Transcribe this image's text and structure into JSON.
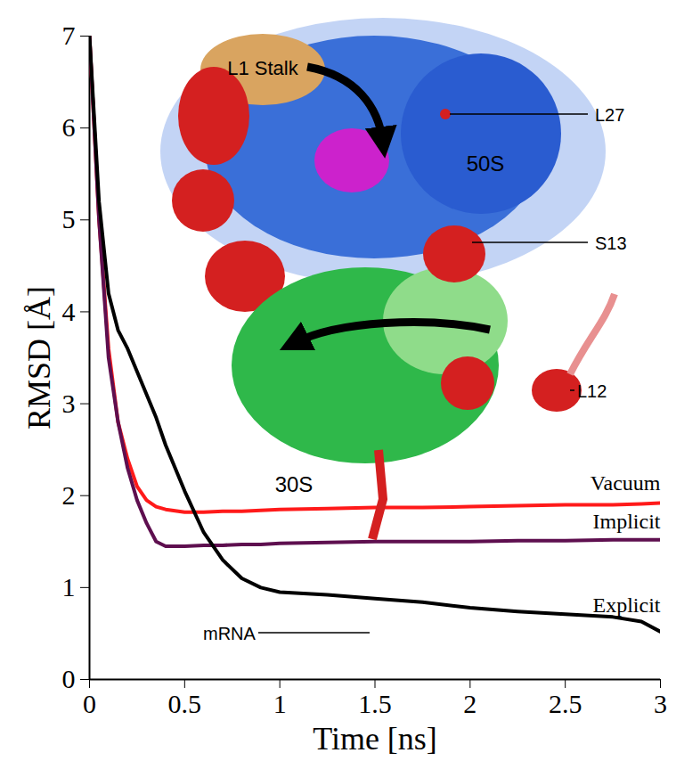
{
  "chart_data": {
    "type": "line",
    "x_label": "Time [ns]",
    "y_label": "RMSD [Å]",
    "x": [
      0,
      0.05,
      0.1,
      0.15,
      0.2,
      0.25,
      0.3,
      0.35,
      0.4,
      0.5,
      0.6,
      0.7,
      0.8,
      0.9,
      1,
      1.25,
      1.5,
      1.75,
      2,
      2.25,
      2.5,
      2.75,
      2.9,
      3
    ],
    "series": [
      {
        "name": "Vacuum",
        "color": "#ff1a1a",
        "values": [
          7,
          5.0,
          3.6,
          2.8,
          2.4,
          2.1,
          1.95,
          1.88,
          1.85,
          1.82,
          1.82,
          1.83,
          1.83,
          1.84,
          1.85,
          1.86,
          1.87,
          1.87,
          1.88,
          1.89,
          1.9,
          1.9,
          1.91,
          1.92
        ]
      },
      {
        "name": "Implicit",
        "color": "#5e0f4f",
        "values": [
          7,
          5.0,
          3.5,
          2.8,
          2.3,
          1.95,
          1.7,
          1.5,
          1.45,
          1.45,
          1.46,
          1.46,
          1.47,
          1.47,
          1.48,
          1.49,
          1.5,
          1.5,
          1.5,
          1.51,
          1.51,
          1.52,
          1.52,
          1.52
        ]
      },
      {
        "name": "Explicit",
        "color": "#000000",
        "values": [
          7,
          5.2,
          4.2,
          3.8,
          3.6,
          3.35,
          3.1,
          2.85,
          2.55,
          2.05,
          1.6,
          1.3,
          1.1,
          1.0,
          0.95,
          0.92,
          0.88,
          0.84,
          0.78,
          0.74,
          0.71,
          0.68,
          0.63,
          0.52
        ]
      }
    ],
    "xlim": [
      0,
      3
    ],
    "xticks": [
      0,
      0.5,
      1,
      1.5,
      2,
      2.5,
      3
    ],
    "ylim": [
      0,
      7
    ],
    "yticks": [
      0,
      1,
      2,
      3,
      4,
      5,
      6,
      7
    ],
    "grid": false,
    "annotations": [
      "L1 Stalk",
      "L27",
      "50S",
      "S13",
      "L12",
      "30S",
      "mRNA"
    ]
  }
}
